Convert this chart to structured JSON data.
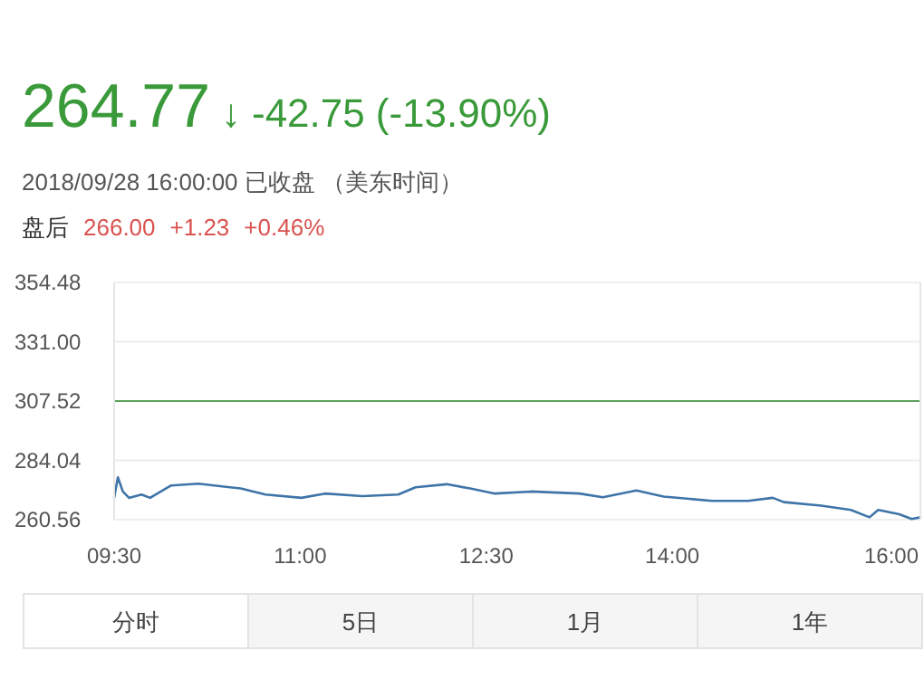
{
  "chart_data": {
    "type": "line",
    "title": "264.77 ↓ -42.75 (-13.90%)",
    "subtitle": "2018/09/28 16:00:00 已收盘 （美东时间）",
    "annotations": [
      "盘后 266.00 +1.23 +0.46%",
      "分时",
      "5日",
      "1月",
      "1年"
    ],
    "xlim": [
      9.5,
      16.0
    ],
    "xticks": [
      {
        "value": 9.5,
        "label": "09:30"
      },
      {
        "value": 11,
        "label": "11:00"
      },
      {
        "value": 12.5,
        "label": "12:30"
      },
      {
        "value": 14,
        "label": "14:00"
      },
      {
        "value": 16,
        "label": "16:00"
      }
    ],
    "ylim": [
      260.56,
      354.48
    ],
    "yticks": [
      {
        "value": 260.56,
        "label": "260.56"
      },
      {
        "value": 284.04,
        "label": "284.04"
      },
      {
        "value": 307.52,
        "label": "307.52"
      },
      {
        "value": 331.0,
        "label": "331.00"
      },
      {
        "value": 354.48,
        "label": "354.48"
      }
    ],
    "grid": "y",
    "ref_lines": [
      {
        "axis": "y",
        "value": 307.52,
        "color": "#5a9e5a"
      }
    ],
    "series": [
      {
        "color": "#3f74a8",
        "x": [
          9.5,
          9.53,
          9.57,
          9.62,
          9.72,
          9.79,
          9.96,
          10.18,
          10.52,
          10.72,
          11.01,
          11.2,
          11.5,
          11.79,
          11.93,
          12.18,
          12.37,
          12.57,
          12.86,
          13.25,
          13.44,
          13.71,
          13.93,
          14.32,
          14.61,
          14.81,
          14.9,
          15.2,
          15.44,
          15.59,
          15.66,
          15.83,
          15.93,
          16.0
        ],
        "values": [
          269.2,
          277.3,
          271.7,
          269.2,
          270.5,
          269.2,
          274.1,
          274.8,
          272.9,
          270.5,
          269.2,
          270.9,
          269.9,
          270.5,
          273.4,
          274.6,
          272.9,
          270.9,
          271.7,
          270.9,
          269.4,
          272.1,
          269.7,
          268.0,
          268.0,
          269.2,
          267.5,
          266.1,
          264.4,
          261.5,
          264.4,
          262.7,
          260.8,
          261.5
        ]
      }
    ]
  }
}
